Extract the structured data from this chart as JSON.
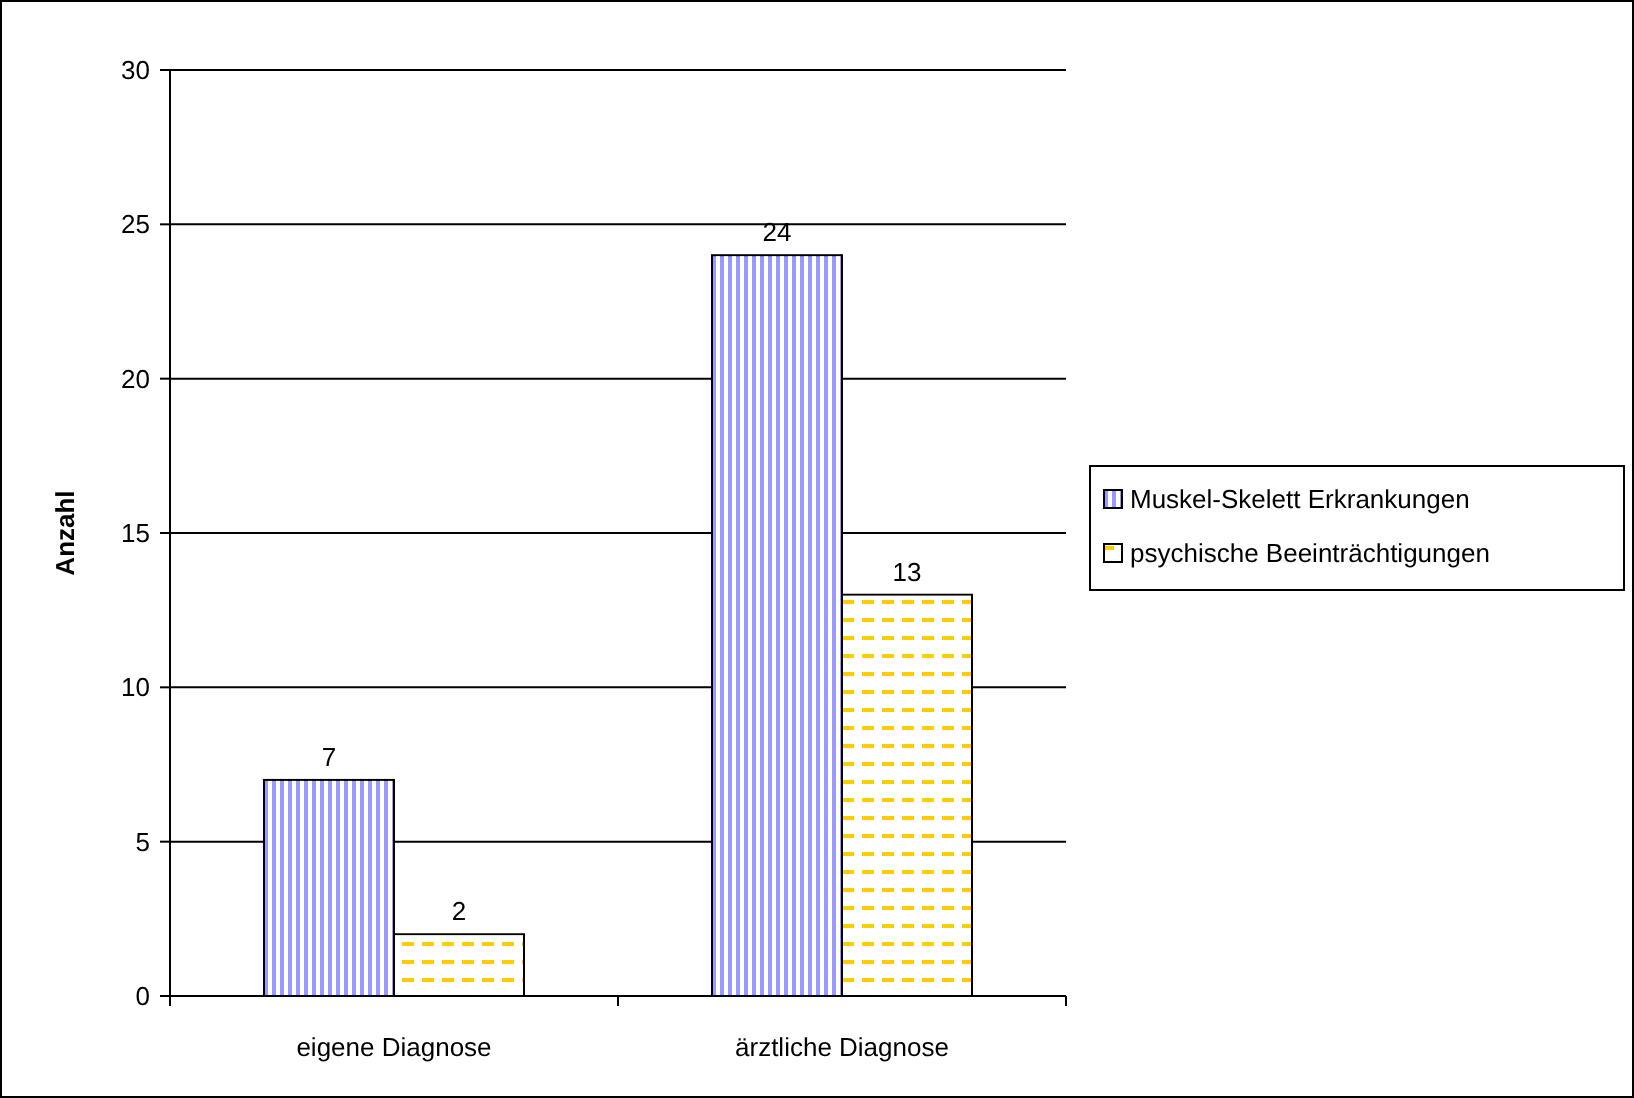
{
  "chart_data": {
    "type": "bar",
    "ylabel": "Anzahl",
    "categories": [
      "eigene Diagnose",
      "ärztliche Diagnose"
    ],
    "series": [
      {
        "name": "Muskel-Skelett Erkrankungen",
        "color": "#9999ff",
        "values": [
          7,
          24
        ]
      },
      {
        "name": "psychische Beeinträchtigungen",
        "color": "#ffcc00",
        "values": [
          2,
          13
        ]
      }
    ],
    "ylim": [
      0,
      30
    ],
    "yticks": [
      0,
      5,
      10,
      15,
      20,
      25,
      30
    ],
    "grid": "y",
    "legend": "right",
    "data_labels": true
  }
}
